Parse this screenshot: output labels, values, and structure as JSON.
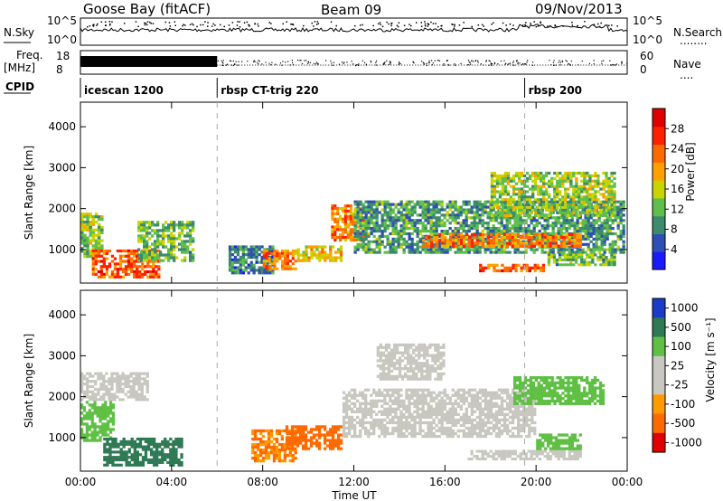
{
  "header": {
    "title": "Goose Bay (fitACF)",
    "beam": "Beam 09",
    "date": "09/Nov/2013"
  },
  "panels": {
    "nsky": {
      "label": "N.Sky",
      "ticks_left": [
        "10^5",
        "10^0"
      ],
      "ticks_right": [
        "10^5",
        "10^0"
      ],
      "right_label": "N.Search",
      "right_legend": "........"
    },
    "freq": {
      "label_line1": "Freq.",
      "label_line2": "[MHz]",
      "ticks_left": [
        "18",
        "8"
      ],
      "ticks_right": [
        "60",
        "0"
      ],
      "right_label": "Nave",
      "right_legend": "...."
    },
    "cpid": {
      "label": "CPID",
      "segments": [
        {
          "label": "icescan 1200",
          "start": 0.0
        },
        {
          "label": "rbsp CT-trig 220",
          "start": 6.0
        },
        {
          "label": "rbsp 200",
          "start": 19.5
        }
      ]
    }
  },
  "colors": {
    "power_scale": [
      "#1a1aff",
      "#2e4fb5",
      "#3d8a6e",
      "#5fbf4a",
      "#c9d400",
      "#ffa000",
      "#ff6a00",
      "#ff2000",
      "#e00000"
    ],
    "velocity_scale": [
      "#1a3cc8",
      "#2f7a55",
      "#5fc045",
      "#c8c8c0",
      "#c8c8c0",
      "#ff9a00",
      "#ff6a00",
      "#e00000"
    ]
  },
  "chart_data": [
    {
      "type": "heatmap",
      "name": "power-panel",
      "xlabel": "",
      "ylabel": "Slant Range [km]",
      "xlim": [
        0,
        24
      ],
      "ylim": [
        180,
        4600
      ],
      "y_ticks": [
        1000,
        2000,
        3000,
        4000
      ],
      "colorbar": {
        "label": "Power [dB]",
        "range": [
          0,
          32
        ],
        "ticks": [
          4,
          8,
          12,
          16,
          20,
          24,
          28
        ]
      },
      "regions": [
        {
          "t0": 0.0,
          "t1": 1.0,
          "r0": 800,
          "r1": 1900,
          "value": 14
        },
        {
          "t0": 0.5,
          "t1": 3.5,
          "r0": 300,
          "r1": 1000,
          "value": 24
        },
        {
          "t0": 2.5,
          "t1": 5.0,
          "r0": 700,
          "r1": 1700,
          "value": 12
        },
        {
          "t0": 6.5,
          "t1": 8.5,
          "r0": 400,
          "r1": 1100,
          "value": 8
        },
        {
          "t0": 8.0,
          "t1": 9.5,
          "r0": 500,
          "r1": 1000,
          "value": 22
        },
        {
          "t0": 9.5,
          "t1": 11.5,
          "r0": 700,
          "r1": 1100,
          "value": 18
        },
        {
          "t0": 11.0,
          "t1": 12.5,
          "r0": 1200,
          "r1": 2100,
          "value": 22
        },
        {
          "t0": 12.0,
          "t1": 23.9,
          "r0": 900,
          "r1": 2200,
          "value": 10
        },
        {
          "t0": 15.0,
          "t1": 22.0,
          "r0": 1050,
          "r1": 1400,
          "value": 22
        },
        {
          "t0": 17.5,
          "t1": 20.5,
          "r0": 450,
          "r1": 650,
          "value": 24
        },
        {
          "t0": 20.5,
          "t1": 23.5,
          "r0": 600,
          "r1": 900,
          "value": 12
        },
        {
          "t0": 18.0,
          "t1": 23.5,
          "r0": 1800,
          "r1": 2900,
          "value": 14
        }
      ]
    },
    {
      "type": "heatmap",
      "name": "velocity-panel",
      "xlabel": "Time UT",
      "ylabel": "Slant Range [km]",
      "xlim": [
        0,
        24
      ],
      "ylim": [
        180,
        4600
      ],
      "x_ticks": [
        "00:00",
        "04:00",
        "08:00",
        "12:00",
        "16:00",
        "20:00",
        "00:00"
      ],
      "y_ticks": [
        1000,
        2000,
        3000,
        4000
      ],
      "colorbar": {
        "label": "Velocity [m s⁻¹]",
        "ticks": [
          "1000",
          "500",
          "100",
          "25",
          "-25",
          "-100",
          "-500",
          "-1000"
        ]
      },
      "regions": [
        {
          "t0": 0.0,
          "t1": 1.5,
          "r0": 900,
          "r1": 1900,
          "value": 100
        },
        {
          "t0": 1.0,
          "t1": 4.5,
          "r0": 300,
          "r1": 1000,
          "value": 300
        },
        {
          "t0": 0.0,
          "t1": 3.0,
          "r0": 1900,
          "r1": 2600,
          "value": 0
        },
        {
          "t0": 7.5,
          "t1": 9.5,
          "r0": 400,
          "r1": 1200,
          "value": -200
        },
        {
          "t0": 9.0,
          "t1": 11.5,
          "r0": 700,
          "r1": 1300,
          "value": -300
        },
        {
          "t0": 11.5,
          "t1": 20.0,
          "r0": 1000,
          "r1": 2200,
          "value": 0
        },
        {
          "t0": 13.0,
          "t1": 16.0,
          "r0": 2400,
          "r1": 3300,
          "value": 0
        },
        {
          "t0": 17.0,
          "t1": 22.0,
          "r0": 450,
          "r1": 700,
          "value": 0
        },
        {
          "t0": 20.0,
          "t1": 22.0,
          "r0": 700,
          "r1": 1100,
          "value": 100
        },
        {
          "t0": 19.0,
          "t1": 23.0,
          "r0": 1800,
          "r1": 2500,
          "value": 80
        }
      ]
    }
  ]
}
